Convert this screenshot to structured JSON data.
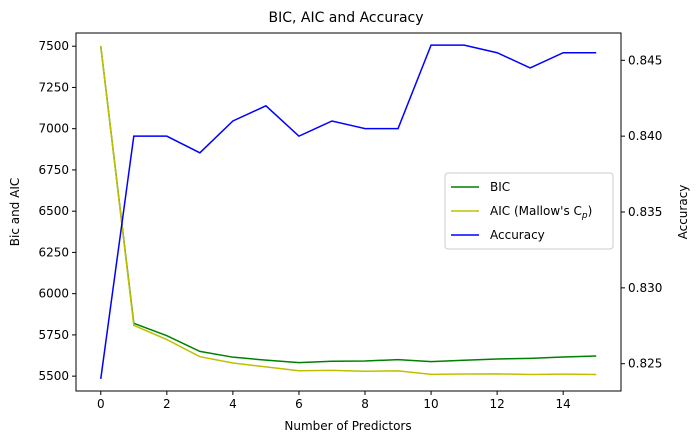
{
  "chart_data": {
    "type": "line",
    "title": "BIC, AIC and Accuracy",
    "xlabel": "Number of Predictors",
    "ylabel_left": "Bic and AIC",
    "ylabel_right": "Accuracy",
    "x": [
      0,
      1,
      2,
      3,
      4,
      5,
      6,
      7,
      8,
      9,
      10,
      11,
      12,
      13,
      14,
      15
    ],
    "xlim": [
      -0.75,
      15.75
    ],
    "xticks": [
      0,
      2,
      4,
      6,
      8,
      10,
      12,
      14
    ],
    "ylim_left": [
      5410,
      7580
    ],
    "yticks_left": [
      5500,
      5750,
      6000,
      6250,
      6500,
      6750,
      7000,
      7250,
      7500
    ],
    "ylim_right": [
      0.8232,
      0.8468
    ],
    "yticks_right": [
      0.825,
      0.83,
      0.835,
      0.84,
      0.845
    ],
    "legend_position": "center-right",
    "series": [
      {
        "name": "BIC",
        "axis": "left",
        "color": "#008000",
        "values": [
          7500,
          5820,
          5745,
          5650,
          5615,
          5597,
          5582,
          5590,
          5592,
          5600,
          5588,
          5596,
          5604,
          5608,
          5616,
          5622
        ]
      },
      {
        "name": "AIC (Mallow's C",
        "name_sub": "p",
        "name_tail": ")",
        "axis": "left",
        "color": "#bfbf00",
        "values": [
          7500,
          5808,
          5722,
          5618,
          5580,
          5556,
          5533,
          5535,
          5530,
          5532,
          5511,
          5513,
          5514,
          5510,
          5512,
          5510
        ]
      },
      {
        "name": "Accuracy",
        "axis": "right",
        "color": "#0000ff",
        "values": [
          0.824,
          0.84,
          0.84,
          0.8389,
          0.841,
          0.842,
          0.84,
          0.841,
          0.8405,
          0.8405,
          0.846,
          0.846,
          0.8455,
          0.8445,
          0.8455,
          0.8455
        ]
      }
    ]
  }
}
